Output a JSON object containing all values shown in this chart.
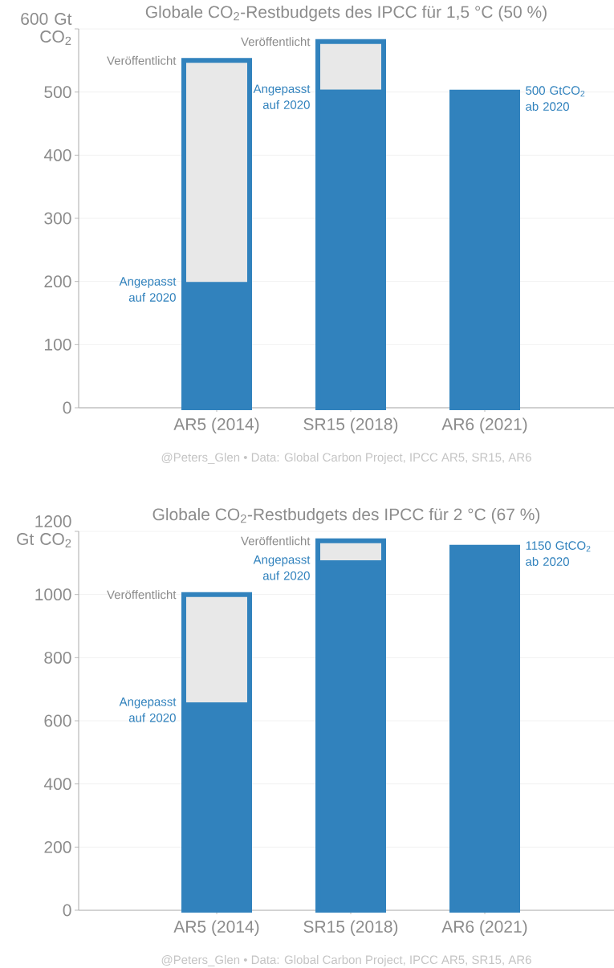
{
  "chart_data": [
    {
      "type": "bar",
      "stacked": true,
      "title": "Globale CO$_{2}$-Restbudgets des IPCC für 1,5 °C (50 %)",
      "categories": [
        "AR5 (2014)",
        "SR15 (2018)",
        "AR6 (2021)"
      ],
      "series": [
        {
          "color": "#3182bd",
          "values": [
            195,
            500,
            500
          ]
        },
        {
          "color": "#e8e8e8",
          "values": [
            355,
            80,
            0
          ]
        }
      ],
      "ylim": [
        0,
        600
      ],
      "yticks": [
        0,
        100,
        200,
        300,
        400,
        500,
        {
          "value": 600,
          "label": "600 Gt CO$_{2}$"
        }
      ],
      "grid": "y",
      "annotations": [
        "Veröffentlicht",
        "Angepasst auf 2020",
        "Veröffentlicht",
        "Angepasst auf 2020",
        "500 GtCO$_{2}$ ab 2020",
        "@Peters_Glen • Data: Global Carbon Project, IPCC AR5, SR15, AR6"
      ]
    },
    {
      "type": "bar",
      "stacked": true,
      "title": "Globale CO$_{2}$-Restbudgets des IPCC für 2 °C (67 %)",
      "categories": [
        "AR5 (2014)",
        "SR15 (2018)",
        "AR6 (2021)"
      ],
      "series": [
        {
          "color": "#3182bd",
          "values": [
            650,
            1100,
            1150
          ]
        },
        {
          "color": "#e8e8e8",
          "values": [
            350,
            70,
            0
          ]
        }
      ],
      "ylim": [
        0,
        1200
      ],
      "yticks": [
        0,
        200,
        400,
        600,
        800,
        1000,
        {
          "value": 1200,
          "label": "1200 Gt CO$_{2}$"
        }
      ],
      "grid": "y",
      "annotations": [
        "Veröffentlicht",
        "Angepasst auf 2020",
        "Veröffentlicht",
        "Angepasst auf 2020",
        "1150 GtCO$_{2}$ ab 2020",
        "@Peters_Glen • Data: Global Carbon Project, IPCC AR5, SR15, AR6"
      ]
    }
  ]
}
